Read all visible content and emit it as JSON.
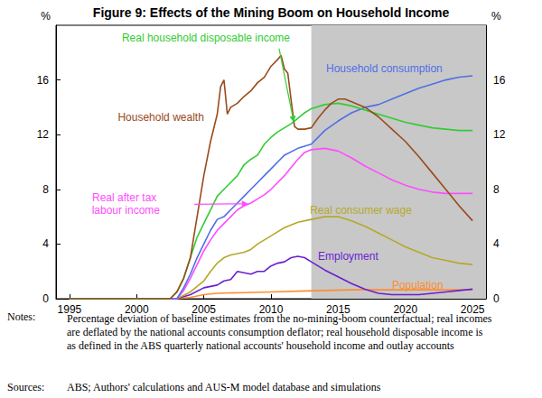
{
  "chart_data": {
    "type": "line",
    "title": "Figure 9: Effects of the Mining Boom on Household Income",
    "y_axis_label": "%",
    "y2_axis_label": "%",
    "xlim": [
      1994,
      2026
    ],
    "xticks": [
      1995,
      2000,
      2005,
      2010,
      2015,
      2020,
      2025
    ],
    "ylim": [
      0,
      20
    ],
    "yticks": [
      0,
      4,
      8,
      12,
      16
    ],
    "y2lim": [
      0,
      20
    ],
    "y2ticks": [
      0,
      4,
      8,
      12,
      16
    ],
    "grid": false,
    "shaded_x": [
      2013,
      2026
    ],
    "notes_label": "Notes:",
    "notes": "Percentage deviation of baseline estimates from the no-mining-boom counterfactual; real incomes are deflated by the national accounts consumption deflator; real household disposable income is as defined in the ABS quarterly national accounts' household income and outlay accounts",
    "sources_label": "Sources:",
    "sources": "ABS; Authors' calculations and AUS-M model database and simulations",
    "series": [
      {
        "name": "Population",
        "color": "#ff8c2e",
        "x": [
          1995,
          2003,
          2004,
          2005,
          2006,
          2008,
          2010,
          2012,
          2014,
          2016,
          2025
        ],
        "values": [
          0,
          0,
          0.1,
          0.3,
          0.4,
          0.45,
          0.5,
          0.55,
          0.6,
          0.65,
          0.65
        ]
      },
      {
        "name": "Employment",
        "color": "#6a1fd0",
        "x": [
          1995,
          2003,
          2004,
          2005,
          2006,
          2006.5,
          2007,
          2007.5,
          2008,
          2008.5,
          2009,
          2009.5,
          2010,
          2010.5,
          2011,
          2011.5,
          2012,
          2012.5,
          2013,
          2014,
          2015,
          2016,
          2017,
          2018,
          2019,
          2020,
          2021,
          2022,
          2023,
          2024,
          2025
        ],
        "values": [
          0,
          0,
          0.3,
          0.8,
          1.0,
          1.3,
          1.4,
          2.0,
          1.9,
          1.8,
          2.0,
          2.0,
          2.4,
          2.6,
          2.7,
          3.0,
          3.1,
          3.0,
          2.7,
          2.1,
          1.6,
          1.1,
          0.7,
          0.4,
          0.3,
          0.3,
          0.3,
          0.4,
          0.5,
          0.6,
          0.7
        ]
      },
      {
        "name": "Real consumer wage",
        "color": "#b5a82a",
        "x": [
          1995,
          2003,
          2004,
          2005,
          2005.5,
          2006,
          2006.5,
          2007,
          2008,
          2008.5,
          2009,
          2010,
          2011,
          2012,
          2013,
          2014,
          2015,
          2016,
          2017,
          2018,
          2019,
          2020,
          2021,
          2022,
          2023,
          2024,
          2025
        ],
        "values": [
          0,
          0,
          0.5,
          1.3,
          2.0,
          2.6,
          3.0,
          3.2,
          3.4,
          3.6,
          4.0,
          4.6,
          5.2,
          5.6,
          5.8,
          6.0,
          6.0,
          5.7,
          5.3,
          4.8,
          4.3,
          3.8,
          3.4,
          3.0,
          2.8,
          2.6,
          2.5
        ]
      },
      {
        "name": "Real after tax labour income",
        "color": "#ff4cff",
        "x": [
          1995,
          2003,
          2003.5,
          2004,
          2004.5,
          2005,
          2005.5,
          2006,
          2006.5,
          2007,
          2007.5,
          2008,
          2008.5,
          2009,
          2009.5,
          2010,
          2010.5,
          2011,
          2011.5,
          2012,
          2012.5,
          2013,
          2014,
          2015,
          2016,
          2017,
          2018,
          2019,
          2020,
          2021,
          2022,
          2023,
          2024,
          2025
        ],
        "values": [
          0,
          0,
          0.6,
          1.5,
          2.5,
          3.5,
          4.3,
          5.0,
          5.5,
          6.0,
          6.5,
          6.8,
          7.0,
          7.3,
          7.6,
          8.0,
          8.5,
          9.0,
          9.6,
          10.2,
          10.7,
          10.9,
          11.0,
          10.8,
          10.3,
          9.7,
          9.2,
          8.7,
          8.3,
          8.0,
          7.8,
          7.7,
          7.7,
          7.7
        ]
      },
      {
        "name": "Household consumption",
        "color": "#4f6fe6",
        "x": [
          1995,
          2003,
          2003.5,
          2004,
          2004.5,
          2005,
          2005.5,
          2006,
          2006.5,
          2007,
          2007.5,
          2008,
          2008.5,
          2009,
          2009.5,
          2010,
          2010.5,
          2011,
          2012,
          2013,
          2014,
          2015,
          2016,
          2017,
          2018,
          2019,
          2020,
          2021,
          2022,
          2023,
          2024,
          2025
        ],
        "values": [
          0,
          0,
          0.8,
          1.8,
          3.0,
          4.0,
          5.0,
          5.8,
          6.0,
          6.5,
          7.0,
          7.5,
          8.0,
          8.5,
          9.0,
          9.5,
          10.0,
          10.5,
          11.0,
          11.3,
          12.3,
          13.0,
          13.6,
          14.0,
          14.2,
          14.6,
          15.0,
          15.4,
          15.7,
          16.0,
          16.2,
          16.3
        ]
      },
      {
        "name": "Real household disposable income",
        "color": "#33cc33",
        "x": [
          1995,
          2002.5,
          2003,
          2003.5,
          2004,
          2004.5,
          2005,
          2005.5,
          2006,
          2006.5,
          2007,
          2007.5,
          2008,
          2008.5,
          2009,
          2009.5,
          2010,
          2010.5,
          2011,
          2011.5,
          2012,
          2012.5,
          2013,
          2014,
          2015,
          2016,
          2017,
          2018,
          2019,
          2020,
          2021,
          2022,
          2023,
          2024,
          2025
        ],
        "values": [
          0,
          0,
          0.5,
          1.5,
          3.0,
          4.5,
          5.5,
          6.5,
          7.5,
          8.0,
          8.5,
          9.0,
          9.8,
          10.2,
          10.5,
          11.3,
          11.8,
          12.2,
          12.5,
          12.8,
          13.2,
          13.6,
          13.9,
          14.2,
          14.3,
          14.1,
          13.8,
          13.5,
          13.2,
          12.9,
          12.7,
          12.5,
          12.4,
          12.3,
          12.3
        ]
      },
      {
        "name": "Household wealth",
        "color": "#9a4a1c",
        "x": [
          1995,
          2002.5,
          2003,
          2003.5,
          2004,
          2004.5,
          2005,
          2005.5,
          2006,
          2006.25,
          2006.5,
          2006.75,
          2007,
          2007.5,
          2008,
          2008.5,
          2009,
          2009.5,
          2010,
          2010.5,
          2010.75,
          2011,
          2011.25,
          2011.5,
          2011.75,
          2012,
          2012.5,
          2013,
          2013.5,
          2014,
          2014.5,
          2015,
          2015.5,
          2016,
          2017,
          2018,
          2019,
          2020,
          2021,
          2022,
          2023,
          2024,
          2025
        ],
        "values": [
          0,
          0,
          0.5,
          1.5,
          3.0,
          6.0,
          9.0,
          11.5,
          13.5,
          15.5,
          16.0,
          13.5,
          14.0,
          14.3,
          14.8,
          15.2,
          15.8,
          16.2,
          17.0,
          17.5,
          17.8,
          16.8,
          16.5,
          14.5,
          12.6,
          12.4,
          12.4,
          12.5,
          13.2,
          13.8,
          14.3,
          14.6,
          14.6,
          14.4,
          14.0,
          13.3,
          12.4,
          11.5,
          10.4,
          9.2,
          8.0,
          6.8,
          5.7
        ]
      }
    ]
  }
}
